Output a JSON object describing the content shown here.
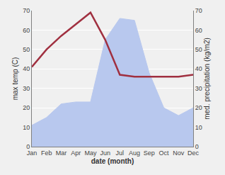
{
  "chart_data": {
    "type": "line",
    "xlabel": "date (month)",
    "ylabel": "max temp (C)",
    "y2label": "med. precipitation (kg/m2)",
    "categories": [
      "Jan",
      "Feb",
      "Mar",
      "Apr",
      "May",
      "Jun",
      "Jul",
      "Aug",
      "Sep",
      "Oct",
      "Nov",
      "Dec"
    ],
    "series": [
      {
        "type": "area",
        "axis": "y2",
        "color": "#b8c8ee",
        "values": [
          11,
          15,
          22,
          23,
          23,
          55,
          66,
          65,
          38,
          20,
          16,
          20
        ]
      },
      {
        "type": "line",
        "color": "#a03040",
        "values": [
          41,
          50,
          57,
          63,
          69,
          55,
          37,
          36,
          36,
          36,
          36,
          37
        ]
      }
    ],
    "ylim": [
      0,
      70
    ],
    "yticks": [
      0,
      10,
      20,
      30,
      40,
      50,
      60,
      70
    ],
    "y2lim": [
      0,
      70
    ],
    "y2ticks": [
      0,
      10,
      20,
      30,
      40,
      50,
      60,
      70
    ],
    "grid": true
  }
}
